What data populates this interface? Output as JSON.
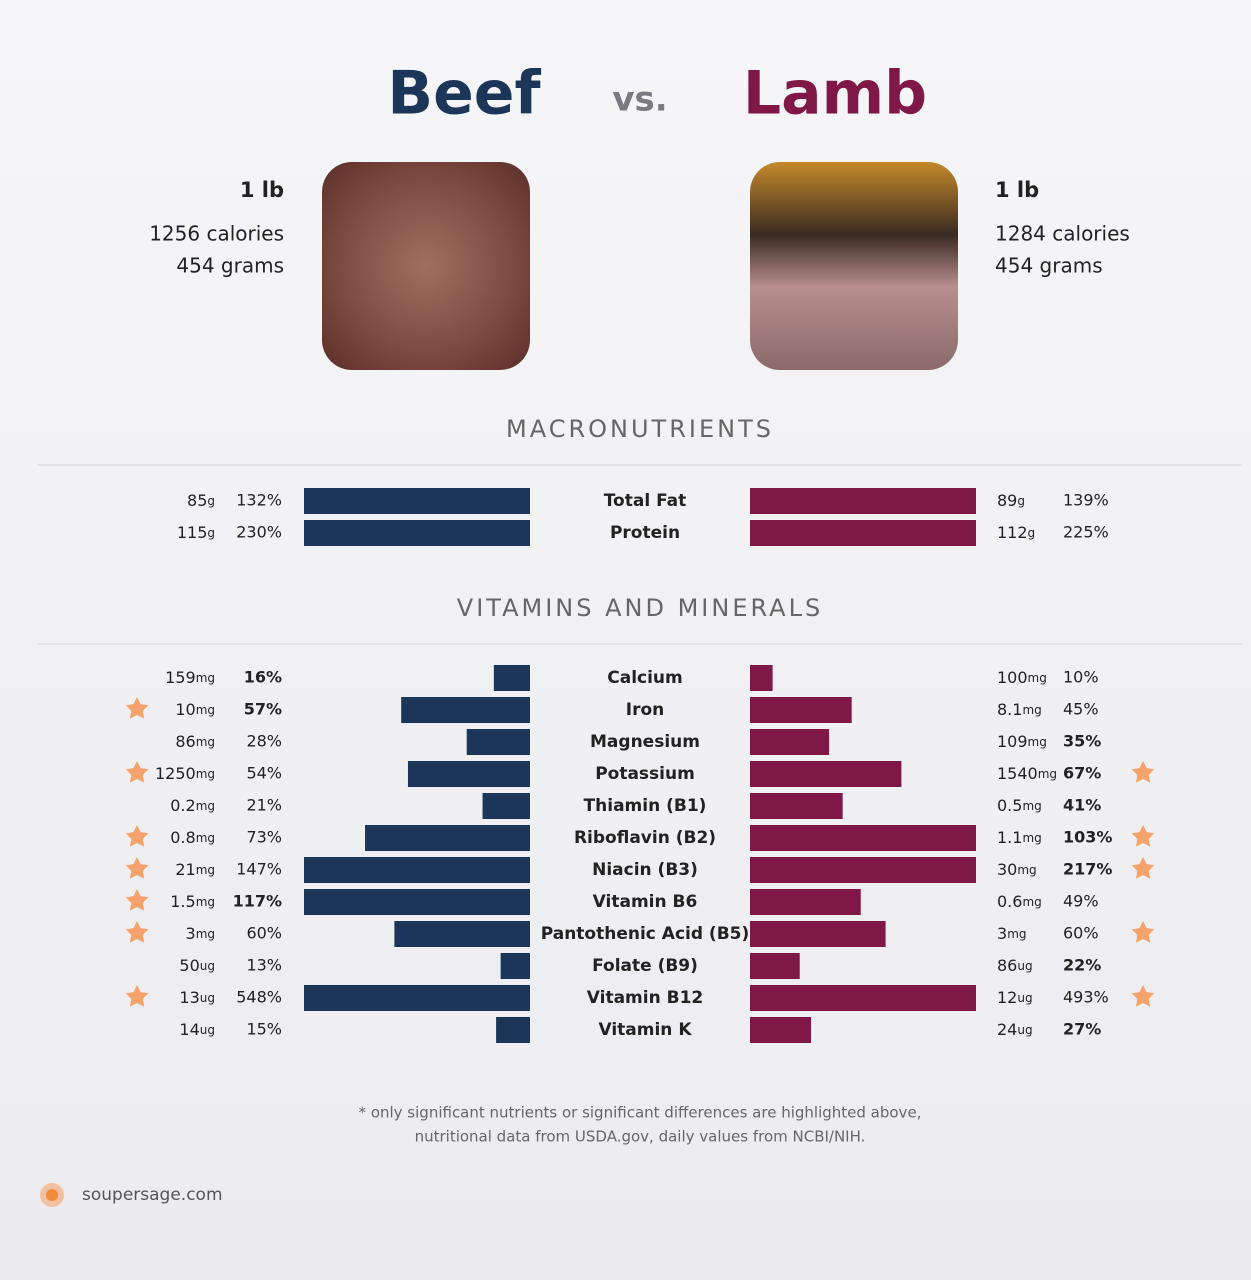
{
  "header": {
    "left": "Beef",
    "vs": "vs.",
    "right": "Lamb"
  },
  "foods": [
    {
      "name": "Beef",
      "color": "#1b3659",
      "serving": "1 lb",
      "calories": "1256 calories",
      "grams": "454 grams"
    },
    {
      "name": "Lamb",
      "color": "#7f1747",
      "serving": "1 lb",
      "calories": "1284 calories",
      "grams": "454 grams"
    }
  ],
  "xlim": [
    0,
    100
  ],
  "star_color": "#f5a36a",
  "macros": {
    "title": "MACRONUTRIENTS",
    "rows": [
      {
        "name": "Total Fat",
        "beef": {
          "amount": 85,
          "unit": "g",
          "pct": 132,
          "pct_label": "132%",
          "bold": false,
          "star": false
        },
        "lamb": {
          "amount": 89,
          "unit": "g",
          "pct": 139,
          "pct_label": "139%",
          "bold": false,
          "star": false
        }
      },
      {
        "name": "Protein",
        "beef": {
          "amount": 115,
          "unit": "g",
          "pct": 230,
          "pct_label": "230%",
          "bold": false,
          "star": false
        },
        "lamb": {
          "amount": 112,
          "unit": "g",
          "pct": 225,
          "pct_label": "225%",
          "bold": false,
          "star": false
        }
      }
    ]
  },
  "vitamins": {
    "title": "VITAMINS AND MINERALS",
    "rows": [
      {
        "name": "Calcium",
        "beef": {
          "amount": 159,
          "unit": "mg",
          "pct": 16,
          "pct_label": "16%",
          "bold": true,
          "star": false
        },
        "lamb": {
          "amount": 100,
          "unit": "mg",
          "pct": 10,
          "pct_label": "10%",
          "bold": false,
          "star": false
        }
      },
      {
        "name": "Iron",
        "beef": {
          "amount": 10,
          "unit": "mg",
          "pct": 57,
          "pct_label": "57%",
          "bold": true,
          "star": true
        },
        "lamb": {
          "amount": 8.1,
          "unit": "mg",
          "pct": 45,
          "pct_label": "45%",
          "bold": false,
          "star": false
        }
      },
      {
        "name": "Magnesium",
        "beef": {
          "amount": 86,
          "unit": "mg",
          "pct": 28,
          "pct_label": "28%",
          "bold": false,
          "star": false
        },
        "lamb": {
          "amount": 109,
          "unit": "mg",
          "pct": 35,
          "pct_label": "35%",
          "bold": true,
          "star": false
        }
      },
      {
        "name": "Potassium",
        "beef": {
          "amount": 1250,
          "unit": "mg",
          "pct": 54,
          "pct_label": "54%",
          "bold": false,
          "star": true
        },
        "lamb": {
          "amount": 1540,
          "unit": "mg",
          "pct": 67,
          "pct_label": "67%",
          "bold": true,
          "star": true
        }
      },
      {
        "name": "Thiamin (B1)",
        "beef": {
          "amount": 0.2,
          "unit": "mg",
          "pct": 21,
          "pct_label": "21%",
          "bold": false,
          "star": false
        },
        "lamb": {
          "amount": 0.5,
          "unit": "mg",
          "pct": 41,
          "pct_label": "41%",
          "bold": true,
          "star": false
        }
      },
      {
        "name": "Riboflavin (B2)",
        "beef": {
          "amount": 0.8,
          "unit": "mg",
          "pct": 73,
          "pct_label": "73%",
          "bold": false,
          "star": true
        },
        "lamb": {
          "amount": 1.1,
          "unit": "mg",
          "pct": 103,
          "pct_label": "103%",
          "bold": true,
          "star": true
        }
      },
      {
        "name": "Niacin (B3)",
        "beef": {
          "amount": 21,
          "unit": "mg",
          "pct": 147,
          "pct_label": "147%",
          "bold": false,
          "star": true
        },
        "lamb": {
          "amount": 30,
          "unit": "mg",
          "pct": 217,
          "pct_label": "217%",
          "bold": true,
          "star": true
        }
      },
      {
        "name": "Vitamin B6",
        "beef": {
          "amount": 1.5,
          "unit": "mg",
          "pct": 117,
          "pct_label": "117%",
          "bold": true,
          "star": true
        },
        "lamb": {
          "amount": 0.6,
          "unit": "mg",
          "pct": 49,
          "pct_label": "49%",
          "bold": false,
          "star": false
        }
      },
      {
        "name": "Pantothenic Acid (B5)",
        "beef": {
          "amount": 3,
          "unit": "mg",
          "pct": 60,
          "pct_label": "60%",
          "bold": false,
          "star": true
        },
        "lamb": {
          "amount": 3,
          "unit": "mg",
          "pct": 60,
          "pct_label": "60%",
          "bold": false,
          "star": true
        }
      },
      {
        "name": "Folate (B9)",
        "beef": {
          "amount": 50,
          "unit": "ug",
          "pct": 13,
          "pct_label": "13%",
          "bold": false,
          "star": false
        },
        "lamb": {
          "amount": 86,
          "unit": "ug",
          "pct": 22,
          "pct_label": "22%",
          "bold": true,
          "star": false
        }
      },
      {
        "name": "Vitamin B12",
        "beef": {
          "amount": 13,
          "unit": "ug",
          "pct": 548,
          "pct_label": "548%",
          "bold": false,
          "star": true
        },
        "lamb": {
          "amount": 12,
          "unit": "ug",
          "pct": 493,
          "pct_label": "493%",
          "bold": false,
          "star": true
        }
      },
      {
        "name": "Vitamin K",
        "beef": {
          "amount": 14,
          "unit": "ug",
          "pct": 15,
          "pct_label": "15%",
          "bold": false,
          "star": false
        },
        "lamb": {
          "amount": 24,
          "unit": "ug",
          "pct": 27,
          "pct_label": "27%",
          "bold": true,
          "star": false
        }
      }
    ]
  },
  "footnote": [
    "* only significant nutrients or significant differences are highlighted above,",
    "nutritional data from USDA.gov, daily values from NCBI/NIH."
  ],
  "brand": "soupersage.com"
}
